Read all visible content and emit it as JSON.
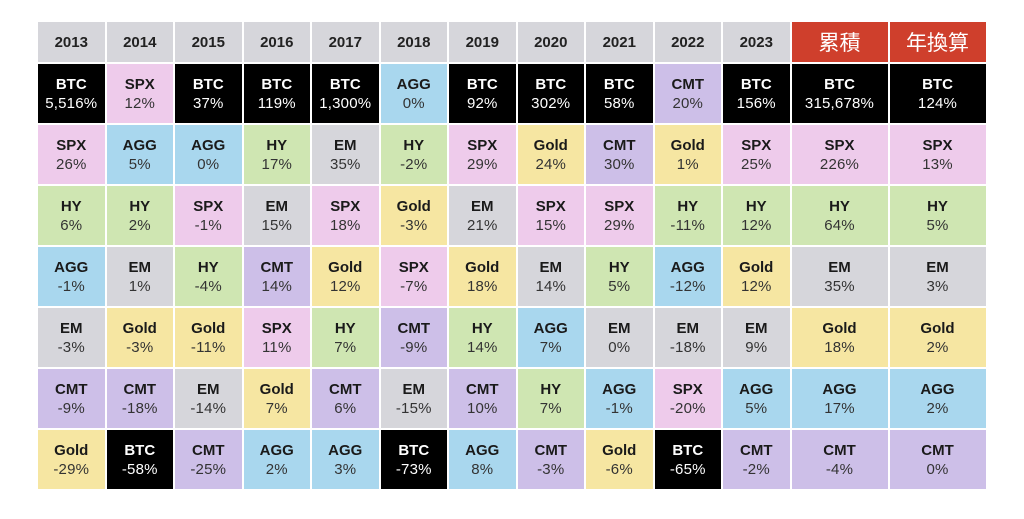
{
  "chart_data": {
    "type": "table",
    "title": "",
    "asset_colors": {
      "BTC": "#000000",
      "SPX": "#eecbeb",
      "AGG": "#a9d7ee",
      "HY": "#cfe6b2",
      "EM": "#d6d6db",
      "Gold": "#f6e6a2",
      "CMT": "#cdbfe8"
    },
    "header_accent": "#cf3f2c",
    "columns": [
      {
        "header": "2013",
        "cells": [
          {
            "asset": "BTC",
            "value": "5,516%"
          },
          {
            "asset": "SPX",
            "value": "26%"
          },
          {
            "asset": "HY",
            "value": "6%"
          },
          {
            "asset": "AGG",
            "value": "-1%"
          },
          {
            "asset": "EM",
            "value": "-3%"
          },
          {
            "asset": "CMT",
            "value": "-9%"
          },
          {
            "asset": "Gold",
            "value": "-29%"
          }
        ]
      },
      {
        "header": "2014",
        "cells": [
          {
            "asset": "SPX",
            "value": "12%"
          },
          {
            "asset": "AGG",
            "value": "5%"
          },
          {
            "asset": "HY",
            "value": "2%"
          },
          {
            "asset": "EM",
            "value": "1%"
          },
          {
            "asset": "Gold",
            "value": "-3%"
          },
          {
            "asset": "CMT",
            "value": "-18%"
          },
          {
            "asset": "BTC",
            "value": "-58%"
          }
        ]
      },
      {
        "header": "2015",
        "cells": [
          {
            "asset": "BTC",
            "value": "37%"
          },
          {
            "asset": "AGG",
            "value": "0%"
          },
          {
            "asset": "SPX",
            "value": "-1%"
          },
          {
            "asset": "HY",
            "value": "-4%"
          },
          {
            "asset": "Gold",
            "value": "-11%"
          },
          {
            "asset": "EM",
            "value": "-14%"
          },
          {
            "asset": "CMT",
            "value": "-25%"
          }
        ]
      },
      {
        "header": "2016",
        "cells": [
          {
            "asset": "BTC",
            "value": "119%"
          },
          {
            "asset": "HY",
            "value": "17%"
          },
          {
            "asset": "EM",
            "value": "15%"
          },
          {
            "asset": "CMT",
            "value": "14%"
          },
          {
            "asset": "SPX",
            "value": "11%"
          },
          {
            "asset": "Gold",
            "value": "7%"
          },
          {
            "asset": "AGG",
            "value": "2%"
          }
        ]
      },
      {
        "header": "2017",
        "cells": [
          {
            "asset": "BTC",
            "value": "1,300%"
          },
          {
            "asset": "EM",
            "value": "35%"
          },
          {
            "asset": "SPX",
            "value": "18%"
          },
          {
            "asset": "Gold",
            "value": "12%"
          },
          {
            "asset": "HY",
            "value": "7%"
          },
          {
            "asset": "CMT",
            "value": "6%"
          },
          {
            "asset": "AGG",
            "value": "3%"
          }
        ]
      },
      {
        "header": "2018",
        "cells": [
          {
            "asset": "AGG",
            "value": "0%"
          },
          {
            "asset": "HY",
            "value": "-2%"
          },
          {
            "asset": "Gold",
            "value": "-3%"
          },
          {
            "asset": "SPX",
            "value": "-7%"
          },
          {
            "asset": "CMT",
            "value": "-9%"
          },
          {
            "asset": "EM",
            "value": "-15%"
          },
          {
            "asset": "BTC",
            "value": "-73%"
          }
        ]
      },
      {
        "header": "2019",
        "cells": [
          {
            "asset": "BTC",
            "value": "92%"
          },
          {
            "asset": "SPX",
            "value": "29%"
          },
          {
            "asset": "EM",
            "value": "21%"
          },
          {
            "asset": "Gold",
            "value": "18%"
          },
          {
            "asset": "HY",
            "value": "14%"
          },
          {
            "asset": "CMT",
            "value": "10%"
          },
          {
            "asset": "AGG",
            "value": "8%"
          }
        ]
      },
      {
        "header": "2020",
        "cells": [
          {
            "asset": "BTC",
            "value": "302%"
          },
          {
            "asset": "Gold",
            "value": "24%"
          },
          {
            "asset": "SPX",
            "value": "15%"
          },
          {
            "asset": "EM",
            "value": "14%"
          },
          {
            "asset": "AGG",
            "value": "7%"
          },
          {
            "asset": "HY",
            "value": "7%"
          },
          {
            "asset": "CMT",
            "value": "-3%"
          }
        ]
      },
      {
        "header": "2021",
        "cells": [
          {
            "asset": "BTC",
            "value": "58%"
          },
          {
            "asset": "CMT",
            "value": "30%"
          },
          {
            "asset": "SPX",
            "value": "29%"
          },
          {
            "asset": "HY",
            "value": "5%"
          },
          {
            "asset": "EM",
            "value": "0%"
          },
          {
            "asset": "AGG",
            "value": "-1%"
          },
          {
            "asset": "Gold",
            "value": "-6%"
          }
        ]
      },
      {
        "header": "2022",
        "cells": [
          {
            "asset": "CMT",
            "value": "20%"
          },
          {
            "asset": "Gold",
            "value": "1%"
          },
          {
            "asset": "HY",
            "value": "-11%"
          },
          {
            "asset": "AGG",
            "value": "-12%"
          },
          {
            "asset": "EM",
            "value": "-18%"
          },
          {
            "asset": "SPX",
            "value": "-20%"
          },
          {
            "asset": "BTC",
            "value": "-65%"
          }
        ]
      },
      {
        "header": "2023",
        "cells": [
          {
            "asset": "BTC",
            "value": "156%"
          },
          {
            "asset": "SPX",
            "value": "25%"
          },
          {
            "asset": "HY",
            "value": "12%"
          },
          {
            "asset": "Gold",
            "value": "12%"
          },
          {
            "asset": "EM",
            "value": "9%"
          },
          {
            "asset": "AGG",
            "value": "5%"
          },
          {
            "asset": "CMT",
            "value": "-2%"
          }
        ]
      },
      {
        "header": "累積",
        "accent": true,
        "cells": [
          {
            "asset": "BTC",
            "value": "315,678%"
          },
          {
            "asset": "SPX",
            "value": "226%"
          },
          {
            "asset": "HY",
            "value": "64%"
          },
          {
            "asset": "EM",
            "value": "35%"
          },
          {
            "asset": "Gold",
            "value": "18%"
          },
          {
            "asset": "AGG",
            "value": "17%"
          },
          {
            "asset": "CMT",
            "value": "-4%"
          }
        ]
      },
      {
        "header": "年換算",
        "accent": true,
        "cells": [
          {
            "asset": "BTC",
            "value": "124%"
          },
          {
            "asset": "SPX",
            "value": "13%"
          },
          {
            "asset": "HY",
            "value": "5%"
          },
          {
            "asset": "EM",
            "value": "3%"
          },
          {
            "asset": "Gold",
            "value": "2%"
          },
          {
            "asset": "AGG",
            "value": "2%"
          },
          {
            "asset": "CMT",
            "value": "0%"
          }
        ]
      }
    ]
  }
}
